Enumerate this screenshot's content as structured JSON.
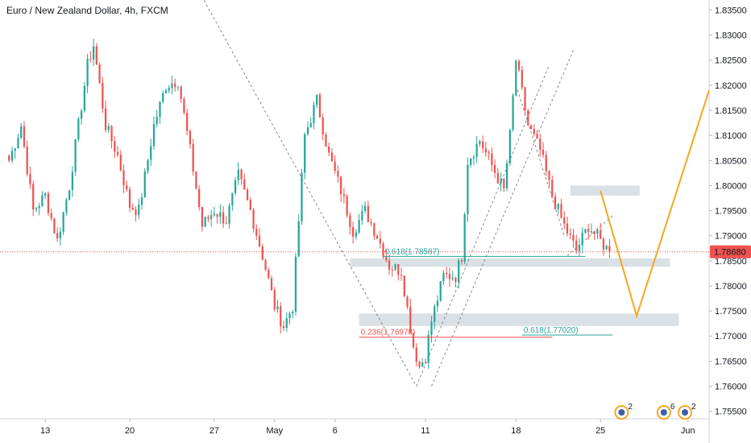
{
  "title": "Euro / New Zealand Dollar, 4h, FXCM",
  "colors": {
    "up": "#26a69a",
    "down": "#ef5350",
    "last_price_tag": "#ef5350",
    "projection": "#f5a623",
    "zone": "#c9d4dc",
    "fib_teal": "#26a69a",
    "fib_red": "#ef5350",
    "trend_line": "#888888"
  },
  "chart_data": {
    "type": "candlestick",
    "y_ticks": [
      "1.75500",
      "1.76000",
      "1.76500",
      "1.77000",
      "1.77500",
      "1.78000",
      "1.78500",
      "1.79000",
      "1.79500",
      "1.80000",
      "1.80500",
      "1.81000",
      "1.81500",
      "1.82000",
      "1.82500",
      "1.83000",
      "1.83500"
    ],
    "ylim": [
      1.7535,
      1.837
    ],
    "x_ticks": [
      "13",
      "20",
      "27",
      "May",
      "6",
      "11",
      "18",
      "25",
      "Jun"
    ],
    "x_tick_bars": [
      12,
      40,
      68,
      88,
      108,
      138,
      168,
      196,
      225
    ],
    "xlim_bars": [
      -3,
      232
    ],
    "last_price": "1.78680",
    "anchors": [
      [
        0,
        1.805
      ],
      [
        4,
        1.812
      ],
      [
        8,
        1.795
      ],
      [
        12,
        1.798
      ],
      [
        16,
        1.789
      ],
      [
        20,
        1.8
      ],
      [
        26,
        1.824
      ],
      [
        28,
        1.828
      ],
      [
        32,
        1.812
      ],
      [
        36,
        1.806
      ],
      [
        40,
        1.796
      ],
      [
        43,
        1.795
      ],
      [
        48,
        1.812
      ],
      [
        52,
        1.82
      ],
      [
        56,
        1.821
      ],
      [
        60,
        1.807
      ],
      [
        64,
        1.792
      ],
      [
        68,
        1.795
      ],
      [
        72,
        1.793
      ],
      [
        76,
        1.802
      ],
      [
        80,
        1.795
      ],
      [
        84,
        1.786
      ],
      [
        88,
        1.776
      ],
      [
        91,
        1.772
      ],
      [
        94,
        1.776
      ],
      [
        98,
        1.81
      ],
      [
        102,
        1.817
      ],
      [
        106,
        1.806
      ],
      [
        110,
        1.799
      ],
      [
        114,
        1.791
      ],
      [
        118,
        1.795
      ],
      [
        122,
        1.79
      ],
      [
        126,
        1.784
      ],
      [
        130,
        1.783
      ],
      [
        134,
        1.768
      ],
      [
        136,
        1.764
      ],
      [
        138,
        1.766
      ],
      [
        140,
        1.773
      ],
      [
        144,
        1.782
      ],
      [
        148,
        1.782
      ],
      [
        150,
        1.786
      ],
      [
        152,
        1.805
      ],
      [
        156,
        1.809
      ],
      [
        160,
        1.804
      ],
      [
        164,
        1.799
      ],
      [
        166,
        1.81
      ],
      [
        168,
        1.825
      ],
      [
        172,
        1.812
      ],
      [
        176,
        1.807
      ],
      [
        180,
        1.798
      ],
      [
        184,
        1.792
      ],
      [
        188,
        1.787
      ],
      [
        192,
        1.792
      ],
      [
        196,
        1.789
      ],
      [
        198,
        1.7875
      ],
      [
        199,
        1.7868
      ]
    ],
    "fib_labels": [
      {
        "text": "0.618(1.78587)",
        "price": 1.78587,
        "bar_start": 124,
        "bar_end": 191,
        "color": "teal"
      },
      {
        "text": "0.236(1.76978)",
        "price": 1.76978,
        "bar_start": 116,
        "bar_end": 180,
        "color": "red"
      },
      {
        "text": "0.618(1.77020)",
        "price": 1.7702,
        "bar_start": 170,
        "bar_end": 200,
        "color": "teal"
      }
    ],
    "zones": [
      {
        "bar_start": 186,
        "bar_end": 209,
        "price_top": 1.8,
        "price_bottom": 1.798
      },
      {
        "bar_start": 113,
        "bar_end": 219,
        "price_top": 1.7855,
        "price_bottom": 1.7838
      },
      {
        "bar_start": 116,
        "bar_end": 222,
        "price_top": 1.7745,
        "price_bottom": 1.772
      }
    ],
    "projection_path": [
      [
        196,
        1.799
      ],
      [
        208,
        1.774
      ],
      [
        232,
        1.819
      ]
    ],
    "dashed_trends": [
      [
        [
          60,
          1.842
        ],
        [
          135,
          1.76
        ]
      ],
      [
        [
          135,
          1.76
        ],
        [
          179,
          1.824
        ]
      ],
      [
        [
          140,
          1.76
        ],
        [
          187,
          1.827
        ]
      ],
      [
        [
          168,
          1.82
        ],
        [
          184,
          1.79
        ]
      ],
      [
        [
          185,
          1.786
        ],
        [
          200,
          1.794
        ]
      ]
    ],
    "events": [
      {
        "bar": 203,
        "label": "2"
      },
      {
        "bar": 217,
        "label": "6"
      },
      {
        "bar": 224,
        "label": "2"
      }
    ]
  }
}
